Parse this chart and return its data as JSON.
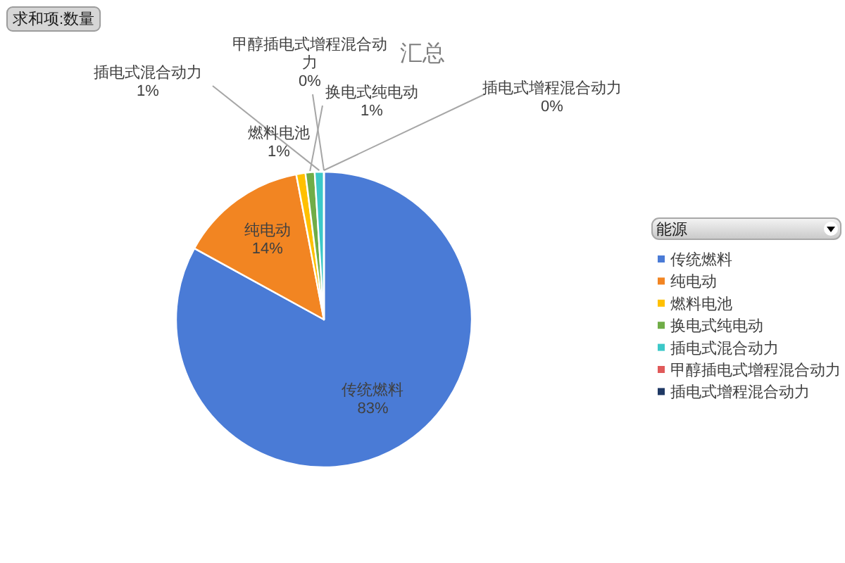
{
  "chart_data": {
    "type": "pie",
    "title": "汇总",
    "legend_title": "能源",
    "annotations": [
      "求和项:数量"
    ],
    "categories": [
      "传统燃料",
      "纯电动",
      "燃料电池",
      "换电式纯电动",
      "插电式混合动力",
      "甲醇插电式增程混合动力",
      "插电式增程混合动力"
    ],
    "values": [
      83,
      14,
      1,
      1,
      1,
      0,
      0
    ],
    "value_labels": [
      "83%",
      "14%",
      "1%",
      "1%",
      "1%",
      "0%",
      "0%"
    ],
    "colors": [
      "#4a7bd6",
      "#f28522",
      "#ffc000",
      "#70ad47",
      "#3cc8c8",
      "#e05a5a",
      "#1f3864"
    ],
    "legend": "right"
  }
}
